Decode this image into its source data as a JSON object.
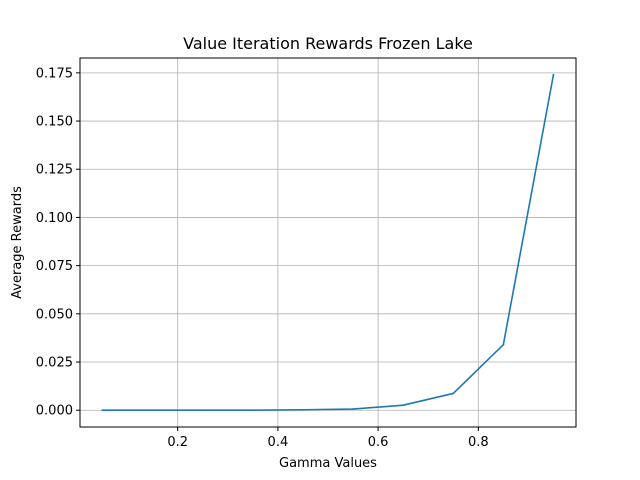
{
  "chart_data": {
    "type": "line",
    "title": "Value Iteration Rewards Frozen Lake",
    "xlabel": "Gamma Values",
    "ylabel": "Average Rewards",
    "x": [
      0.05,
      0.15,
      0.25,
      0.35,
      0.45,
      0.55,
      0.65,
      0.75,
      0.85,
      0.95
    ],
    "series": [
      {
        "values": [
          0.0,
          0.0,
          0.0,
          0.0,
          0.0002,
          0.0006,
          0.0026,
          0.0087,
          0.034,
          0.174
        ],
        "color": "#1f77b4"
      }
    ],
    "xlim": [
      0.005,
      0.995
    ],
    "ylim": [
      -0.0087,
      0.1827
    ],
    "xticks": [
      0.2,
      0.4,
      0.6,
      0.8
    ],
    "xtick_labels": [
      "0.2",
      "0.4",
      "0.6",
      "0.8"
    ],
    "yticks": [
      0.0,
      0.025,
      0.05,
      0.075,
      0.1,
      0.125,
      0.15,
      0.175
    ],
    "ytick_labels": [
      "0.000",
      "0.025",
      "0.050",
      "0.075",
      "0.100",
      "0.125",
      "0.150",
      "0.175"
    ],
    "grid": true,
    "grid_color": "#b0b0b0",
    "axis_color": "#000000"
  }
}
